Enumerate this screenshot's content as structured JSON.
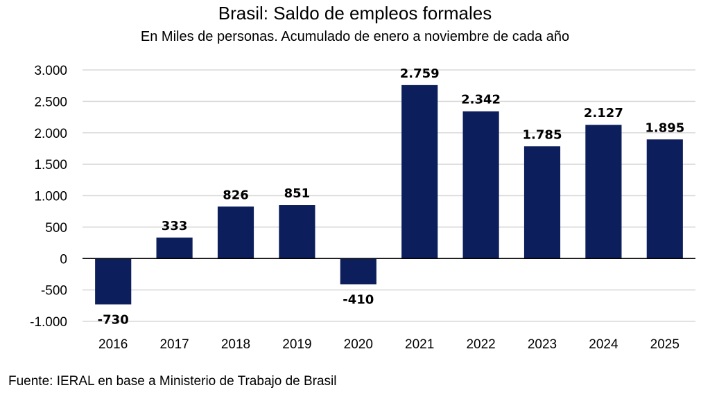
{
  "chart_data": {
    "type": "bar",
    "title": "Brasil: Saldo de empleos formales",
    "subtitle": "En Miles de personas. Acumulado de enero a noviembre  de cada año",
    "xlabel": "",
    "ylabel": "",
    "categories": [
      "2016",
      "2017",
      "2018",
      "2019",
      "2020",
      "2021",
      "2022",
      "2023",
      "2024",
      "2025"
    ],
    "values": [
      -730,
      333,
      826,
      851,
      -410,
      2759,
      2342,
      1785,
      2127,
      1895
    ],
    "data_labels": [
      "-730",
      "333",
      "826",
      "851",
      "-410",
      "2.759",
      "2.342",
      "1.785",
      "2.127",
      "1.895"
    ],
    "ylim": [
      -1000,
      3000
    ],
    "yticks": [
      3000,
      2500,
      2000,
      1500,
      1000,
      500,
      0,
      -500,
      -1000
    ],
    "ytick_labels": [
      "3.000",
      "2.500",
      "2.000",
      "1.500",
      "1.000",
      "500",
      "0",
      "-500",
      "-1.000"
    ],
    "grid": true,
    "legend": "none",
    "bar_color": "#0c1f5c",
    "grid_color": "#d9d9d9",
    "source": "Fuente: IERAL en base a Ministerio de Trabajo de Brasil"
  }
}
